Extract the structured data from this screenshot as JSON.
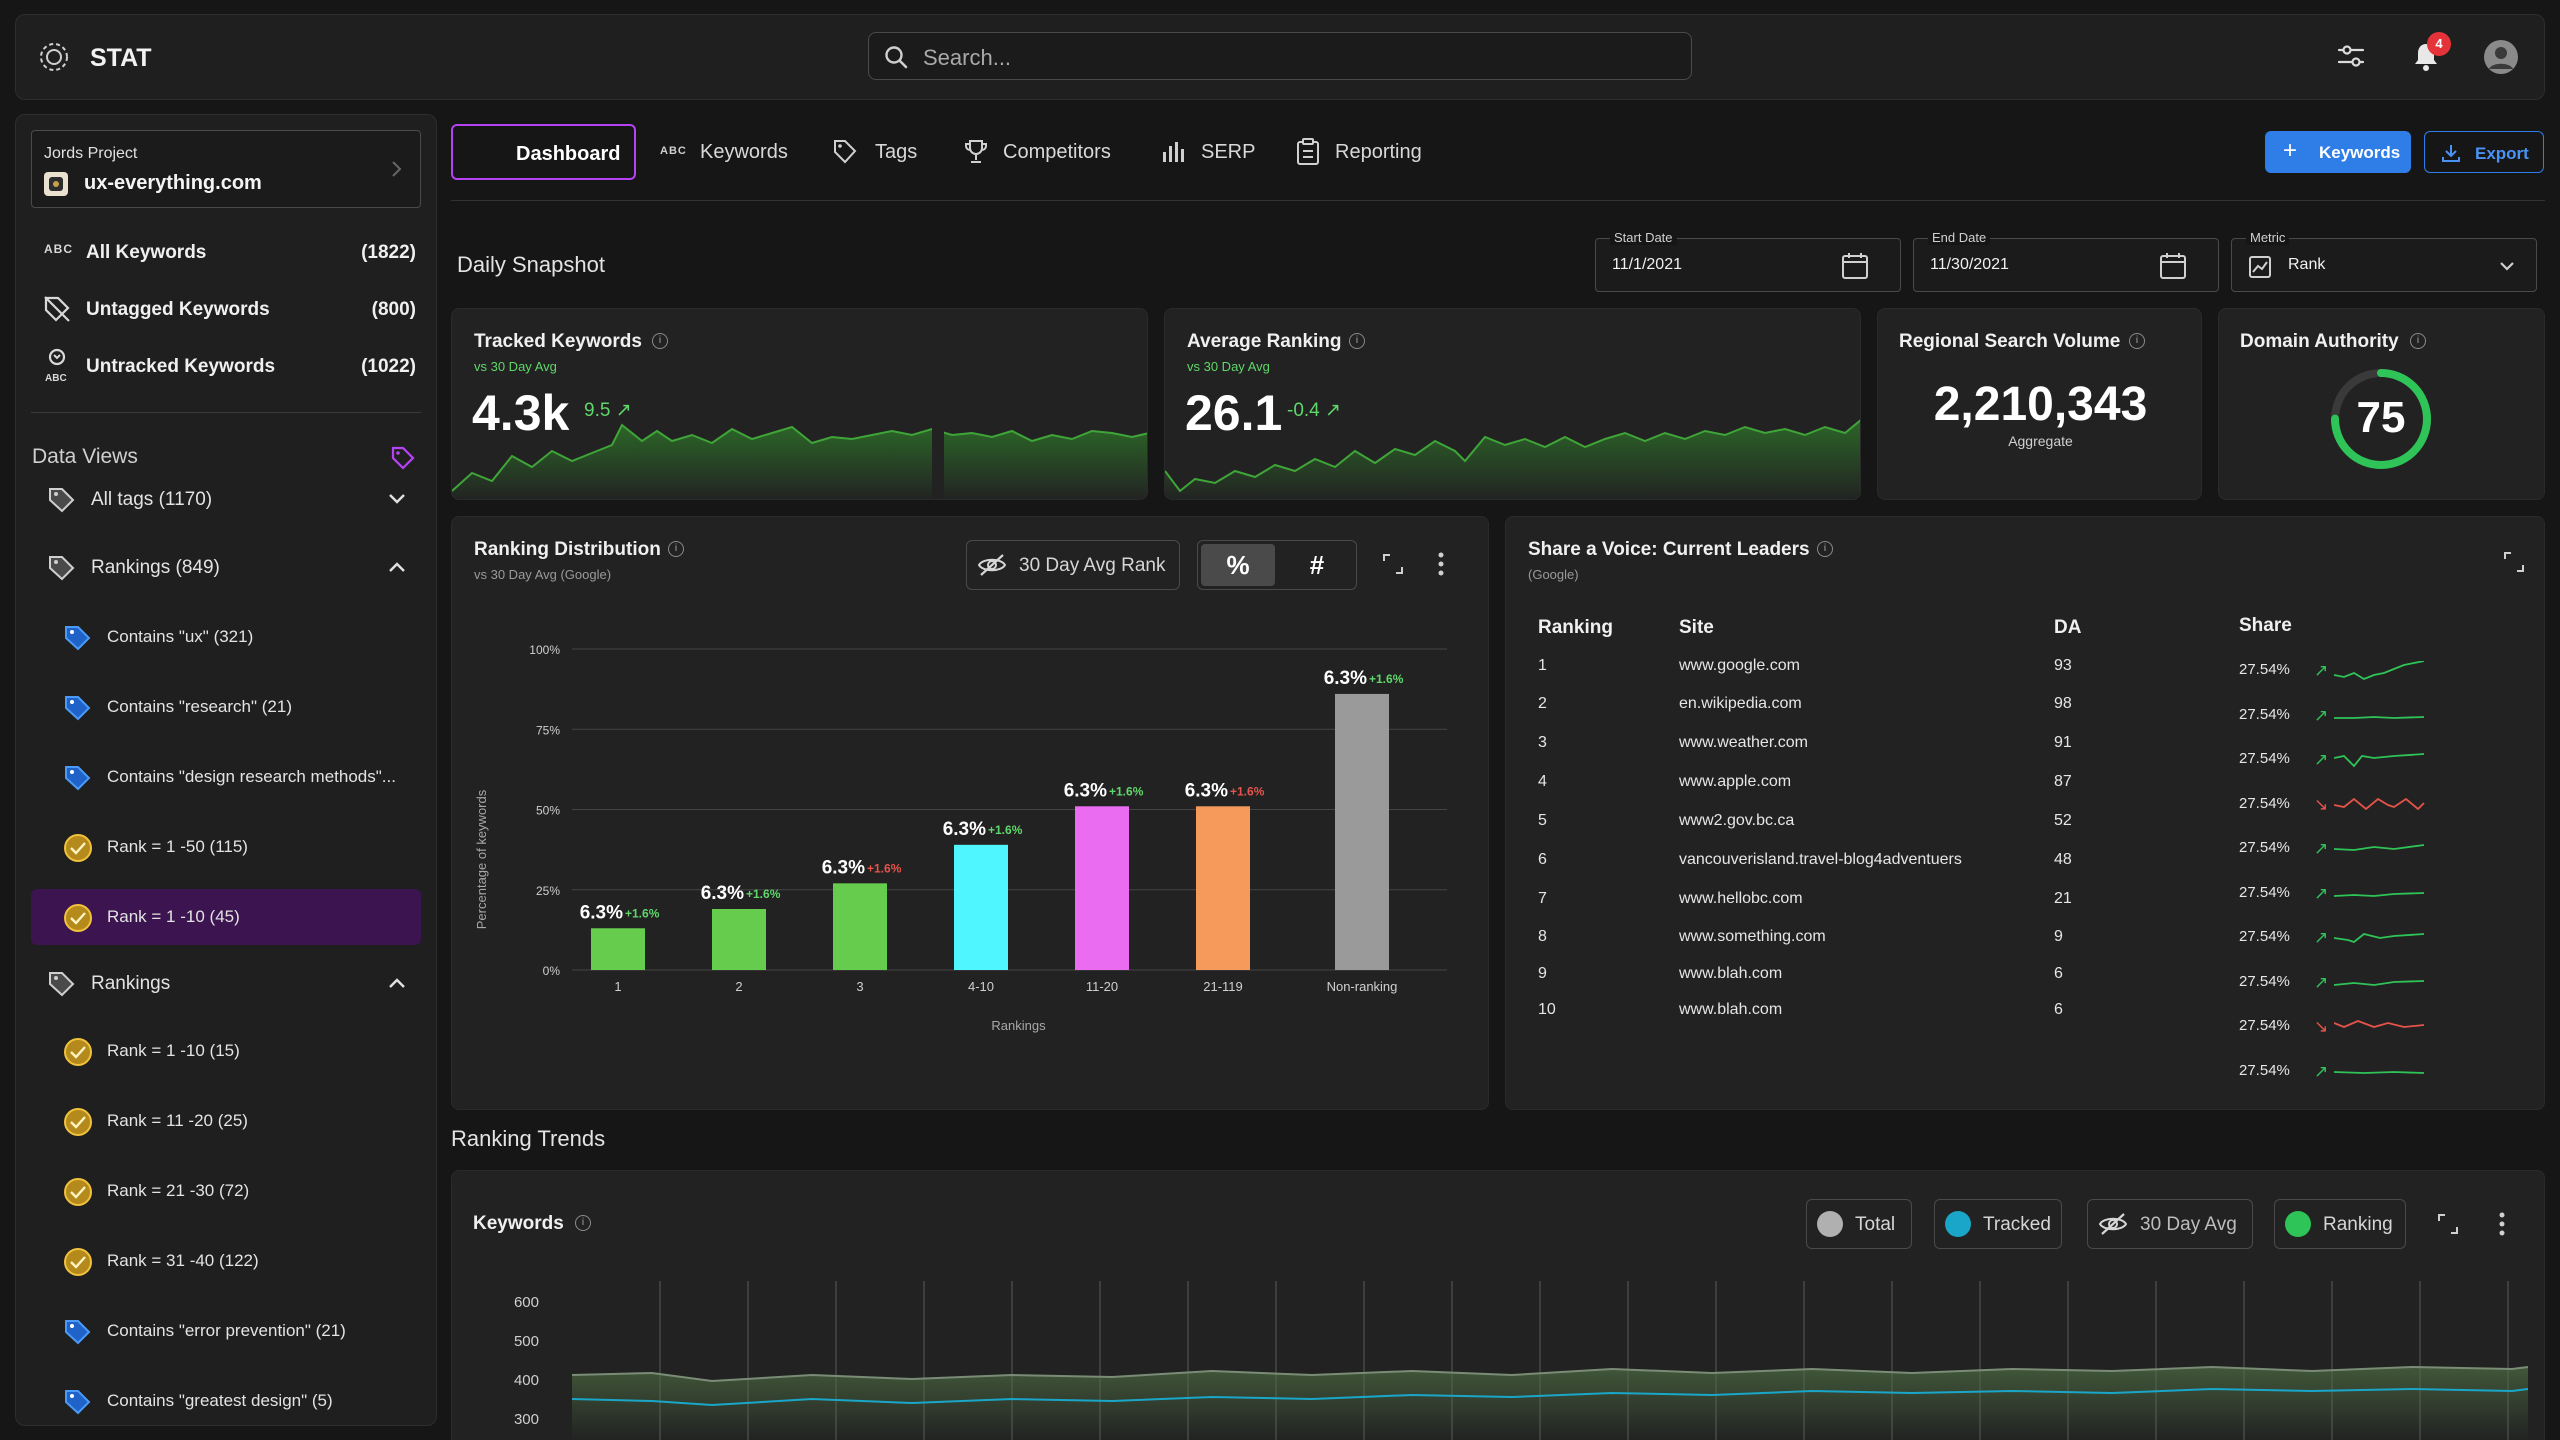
{
  "app": {
    "name": "STAT"
  },
  "search": {
    "placeholder": "Search..."
  },
  "notifications": {
    "count": "4"
  },
  "project": {
    "label": "Jords Project",
    "domain": "ux-everything.com"
  },
  "sidebar": {
    "keyword_rows": [
      {
        "label": "All Keywords",
        "count": "(1822)",
        "icon": "abc-icon"
      },
      {
        "label": "Untagged Keywords",
        "count": "(800)",
        "icon": "untagged-icon"
      },
      {
        "label": "Untracked Keywords",
        "count": "(1022)",
        "icon": "untracked-icon"
      }
    ],
    "data_views_title": "Data Views",
    "views": [
      {
        "label": "All tags (1170)",
        "type": "group",
        "chevron": "down"
      },
      {
        "label": "Rankings (849)",
        "type": "group",
        "chevron": "up"
      },
      {
        "label": "Contains \"ux\" (321)",
        "type": "tag-blue"
      },
      {
        "label": "Contains \"research\" (21)",
        "type": "tag-blue"
      },
      {
        "label": "Contains \"design research methods\"...",
        "type": "tag-blue"
      },
      {
        "label": "Rank = 1 -50 (115)",
        "type": "tag-yellow"
      },
      {
        "label": "Rank = 1 -10 (45)",
        "type": "tag-yellow",
        "active": true
      },
      {
        "label": "Rankings",
        "type": "group",
        "chevron": "up"
      },
      {
        "label": "Rank = 1 -10 (15)",
        "type": "tag-yellow"
      },
      {
        "label": "Rank = 11 -20 (25)",
        "type": "tag-yellow"
      },
      {
        "label": "Rank = 21 -30 (72)",
        "type": "tag-yellow"
      },
      {
        "label": "Rank = 31 -40 (122)",
        "type": "tag-yellow"
      },
      {
        "label": "Contains \"error prevention\" (21)",
        "type": "tag-blue"
      },
      {
        "label": "Contains \"greatest design\" (5)",
        "type": "tag-blue"
      }
    ]
  },
  "tabs": [
    {
      "label": "Dashboard",
      "active": true
    },
    {
      "label": "Keywords",
      "icon": "abc-icon"
    },
    {
      "label": "Tags",
      "icon": "tag-icon"
    },
    {
      "label": "Competitors",
      "icon": "trophy-icon"
    },
    {
      "label": "SERP",
      "icon": "bar-chart-icon"
    },
    {
      "label": "Reporting",
      "icon": "clipboard-icon"
    }
  ],
  "actions": {
    "add_keywords": "Keywords",
    "export": "Export"
  },
  "snapshot": {
    "title": "Daily Snapshot",
    "start_date": {
      "label": "Start Date",
      "value": "11/1/2021"
    },
    "end_date": {
      "label": "End Date",
      "value": "11/30/2021"
    },
    "metric": {
      "label": "Metric",
      "value": "Rank"
    }
  },
  "kpis": {
    "tracked": {
      "title": "Tracked Keywords",
      "sub": "vs 30 Day Avg",
      "value": "4.3k",
      "delta": "9.5"
    },
    "avg_rank": {
      "title": "Average Ranking",
      "sub": "vs 30 Day Avg",
      "value": "26.1",
      "delta": "-0.4"
    },
    "volume": {
      "title": "Regional Search Volume",
      "value": "2,210,343",
      "sub": "Aggregate"
    },
    "authority": {
      "title": "Domain Authority",
      "value": "75",
      "fraction": 0.75
    }
  },
  "ranking_distribution": {
    "title": "Ranking Distribution",
    "sub": "vs 30 Day Avg (Google)",
    "toggle_label": "30 Day Avg Rank",
    "mode_percent": "%",
    "mode_count": "#"
  },
  "chart_data": [
    {
      "type": "bar",
      "categories": [
        "1",
        "2",
        "3",
        "4-10",
        "11-20",
        "21-119",
        "Non-ranking"
      ],
      "values": [
        13,
        19,
        27,
        39,
        51,
        51,
        86
      ],
      "labels": [
        "6.3%",
        "6.3%",
        "6.3%",
        "6.3%",
        "6.3%",
        "6.3%",
        "6.3%"
      ],
      "deltas": [
        "+1.6%",
        "+1.6%",
        "+1.6%",
        "+1.6%",
        "+1.6%",
        "+1.6%",
        "+1.6%"
      ],
      "delta_colors": [
        "#5fd76a",
        "#5fd76a",
        "#e5534b",
        "#5fd76a",
        "#5fd76a",
        "#e5534b",
        "#5fd76a"
      ],
      "colors": [
        "#66cc4e",
        "#66cc4e",
        "#66cc4e",
        "#4ff5ff",
        "#ea6cf0",
        "#f59a5a",
        "#9a9a9a"
      ],
      "yticks": [
        "0%",
        "25%",
        "50%",
        "75%",
        "100%"
      ],
      "ylim": [
        0,
        100
      ],
      "xlabel": "Rankings",
      "ylabel": "Percentage of keywords"
    },
    {
      "type": "line",
      "title": "Keywords",
      "yticks": [
        "300",
        "400",
        "500",
        "600"
      ],
      "series": [
        {
          "name": "Total",
          "color": "#7a8c76"
        },
        {
          "name": "Tracked",
          "color": "#1aa6c9"
        }
      ]
    }
  ],
  "share_of_voice": {
    "title": "Share a Voice: Current Leaders",
    "sub": "(Google)",
    "headers": [
      "Ranking",
      "Site",
      "DA",
      "Share"
    ],
    "rows": [
      {
        "rank": "1",
        "site": "www.google.com",
        "da": "93"
      },
      {
        "rank": "2",
        "site": "en.wikipedia.com",
        "da": "98"
      },
      {
        "rank": "3",
        "site": "www.weather.com",
        "da": "91"
      },
      {
        "rank": "4",
        "site": "www.apple.com",
        "da": "87"
      },
      {
        "rank": "5",
        "site": "www2.gov.bc.ca",
        "da": "52"
      },
      {
        "rank": "6",
        "site": "vancouverisland.travel-blog4adventuers",
        "da": "48"
      },
      {
        "rank": "7",
        "site": "www.hellobc.com",
        "da": "21"
      },
      {
        "rank": "8",
        "site": "www.something.com",
        "da": "9"
      },
      {
        "rank": "9",
        "site": "www.blah.com",
        "da": "6"
      },
      {
        "rank": "10",
        "site": "www.blah.com",
        "da": "6"
      }
    ],
    "shares": [
      {
        "value": "27.54%",
        "trend": "up"
      },
      {
        "value": "27.54%",
        "trend": "up"
      },
      {
        "value": "27.54%",
        "trend": "up"
      },
      {
        "value": "27.54%",
        "trend": "down"
      },
      {
        "value": "27.54%",
        "trend": "up"
      },
      {
        "value": "27.54%",
        "trend": "up"
      },
      {
        "value": "27.54%",
        "trend": "up"
      },
      {
        "value": "27.54%",
        "trend": "up"
      },
      {
        "value": "27.54%",
        "trend": "down"
      },
      {
        "value": "27.54%",
        "trend": "up"
      }
    ]
  },
  "trends": {
    "title": "Ranking Trends",
    "card_title": "Keywords",
    "legend": [
      "Total",
      "Tracked",
      "30 Day Avg",
      "Ranking"
    ]
  }
}
